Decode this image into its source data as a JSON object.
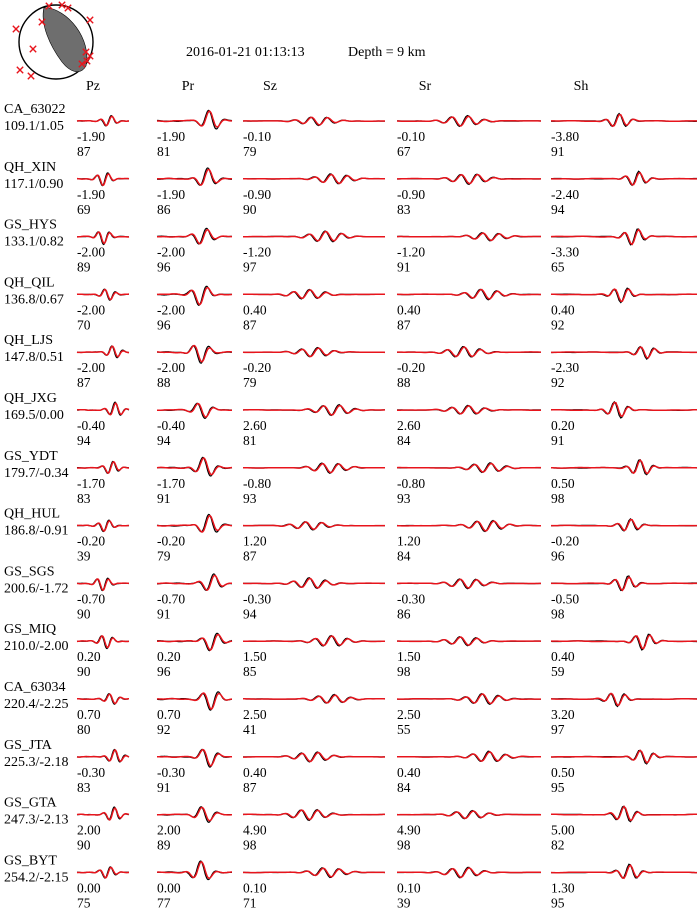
{
  "header": {
    "event_time": "2016-01-21 01:13:13",
    "depth": "Depth = 9 km"
  },
  "colors": {
    "observed": "#000000",
    "synthetic": "#e8141c",
    "beachball_fill": "#6e6e6e",
    "station_marker": "#e8141c"
  },
  "chart_data": {
    "type": "line",
    "title": "2016-01-21 01:13:13",
    "subtitle": "Depth = 9 km",
    "components": [
      "Pz",
      "Pr",
      "Sz",
      "Sr",
      "Sh"
    ],
    "series": [
      {
        "name": "observed",
        "color": "#000000"
      },
      {
        "name": "synthetic",
        "color": "#e8141c"
      }
    ],
    "stations": [
      {
        "name": "CA_63022",
        "info": "109.1/1.05",
        "shift": [
          "-1.90",
          "-1.90",
          "-0.10",
          "-0.10",
          "-3.80"
        ],
        "cc": [
          "87",
          "81",
          "79",
          "67",
          "91"
        ]
      },
      {
        "name": "QH_XIN",
        "info": "117.1/0.90",
        "shift": [
          "-1.90",
          "-1.90",
          "-0.90",
          "-0.90",
          "-2.40"
        ],
        "cc": [
          "69",
          "86",
          "90",
          "83",
          "94"
        ]
      },
      {
        "name": "GS_HYS",
        "info": "133.1/0.82",
        "shift": [
          "-2.00",
          "-2.00",
          "-1.20",
          "-1.20",
          "-3.30"
        ],
        "cc": [
          "89",
          "96",
          "97",
          "91",
          "65"
        ]
      },
      {
        "name": "QH_QIL",
        "info": "136.8/0.67",
        "shift": [
          "-2.00",
          "-2.00",
          "0.40",
          "0.40",
          "0.40"
        ],
        "cc": [
          "70",
          "96",
          "87",
          "87",
          "92"
        ]
      },
      {
        "name": "QH_LJS",
        "info": "147.8/0.51",
        "shift": [
          "-2.00",
          "-2.00",
          "-0.20",
          "-0.20",
          "-2.30"
        ],
        "cc": [
          "87",
          "88",
          "79",
          "88",
          "92"
        ]
      },
      {
        "name": "QH_JXG",
        "info": "169.5/0.00",
        "shift": [
          "-0.40",
          "-0.40",
          "2.60",
          "2.60",
          "0.20"
        ],
        "cc": [
          "94",
          "94",
          "81",
          "84",
          "91"
        ]
      },
      {
        "name": "GS_YDT",
        "info": "179.7/-0.34",
        "shift": [
          "-1.70",
          "-1.70",
          "-0.80",
          "-0.80",
          "0.50"
        ],
        "cc": [
          "83",
          "91",
          "93",
          "93",
          "98"
        ]
      },
      {
        "name": "QH_HUL",
        "info": "186.8/-0.91",
        "shift": [
          "-0.20",
          "-0.20",
          "1.20",
          "1.20",
          "-0.20"
        ],
        "cc": [
          "39",
          "79",
          "87",
          "84",
          "96"
        ]
      },
      {
        "name": "GS_SGS",
        "info": "200.6/-1.72",
        "shift": [
          "-0.70",
          "-0.70",
          "-0.30",
          "-0.30",
          "-0.50"
        ],
        "cc": [
          "90",
          "91",
          "94",
          "86",
          "98"
        ]
      },
      {
        "name": "GS_MIQ",
        "info": "210.0/-2.00",
        "shift": [
          "0.20",
          "0.20",
          "1.50",
          "1.50",
          "0.40"
        ],
        "cc": [
          "90",
          "96",
          "85",
          "98",
          "59"
        ]
      },
      {
        "name": "CA_63034",
        "info": "220.4/-2.25",
        "shift": [
          "0.70",
          "0.70",
          "2.50",
          "2.50",
          "3.20"
        ],
        "cc": [
          "80",
          "92",
          "41",
          "55",
          "97"
        ]
      },
      {
        "name": "GS_JTA",
        "info": "225.3/-2.18",
        "shift": [
          "-0.30",
          "-0.30",
          "0.40",
          "0.40",
          "0.50"
        ],
        "cc": [
          "83",
          "91",
          "87",
          "84",
          "95"
        ]
      },
      {
        "name": "GS_GTA",
        "info": "247.3/-2.13",
        "shift": [
          "2.00",
          "2.00",
          "4.90",
          "4.90",
          "5.00"
        ],
        "cc": [
          "90",
          "89",
          "98",
          "98",
          "82"
        ]
      },
      {
        "name": "GS_BYT",
        "info": "254.2/-2.15",
        "shift": [
          "0.00",
          "0.00",
          "0.10",
          "0.10",
          "1.30"
        ],
        "cc": [
          "75",
          "77",
          "71",
          "39",
          "95"
        ]
      }
    ]
  }
}
